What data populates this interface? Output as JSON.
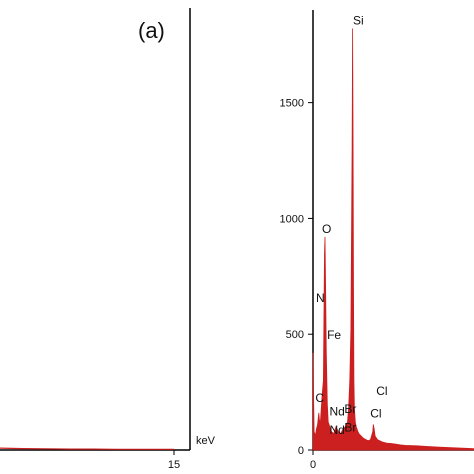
{
  "chart_data": [
    {
      "type": "line",
      "panel_label": "(a)",
      "x_unit": "keV",
      "x_ticks": [
        {
          "value": 15,
          "label": "15"
        }
      ],
      "xlim": [
        0,
        15
      ],
      "ylim": [
        0,
        1900
      ],
      "spectrum_color": "#cc1f1f",
      "series": [
        {
          "x": [
            0,
            2,
            4,
            6,
            8,
            10,
            12,
            14,
            15
          ],
          "y": [
            8,
            6,
            5,
            4,
            4,
            3,
            3,
            3,
            3
          ]
        }
      ]
    },
    {
      "type": "line",
      "panel_label": "",
      "x_unit": "",
      "x_ticks": [
        {
          "value": 0,
          "label": "0"
        }
      ],
      "y_ticks": [
        {
          "value": 0,
          "label": "0"
        },
        {
          "value": 500,
          "label": "500"
        },
        {
          "value": 1000,
          "label": "1000"
        },
        {
          "value": 1500,
          "label": "1500"
        }
      ],
      "xlim": [
        0,
        7
      ],
      "ylim": [
        0,
        1900
      ],
      "spectrum_color": "#cc1f1f",
      "series": [
        {
          "x": [
            0,
            0.05,
            0.1,
            0.15,
            0.2,
            0.25,
            0.28,
            0.32,
            0.36,
            0.4,
            0.45,
            0.5,
            0.52,
            0.55,
            0.58,
            0.62,
            0.66,
            0.7,
            0.75,
            0.8,
            0.9,
            1.0,
            1.05,
            1.1,
            1.2,
            1.3,
            1.4,
            1.5,
            1.55,
            1.6,
            1.65,
            1.7,
            1.72,
            1.74,
            1.76,
            1.78,
            1.8,
            1.84,
            1.88,
            1.95,
            2.0,
            2.1,
            2.2,
            2.3,
            2.4,
            2.5,
            2.6,
            2.62,
            2.66,
            2.7,
            2.8,
            2.9,
            3.0,
            3.2,
            3.4,
            3.6,
            3.8,
            4.0,
            4.5,
            5.0,
            5.5,
            6.0,
            6.5,
            7.0
          ],
          "y": [
            420,
            80,
            60,
            90,
            110,
            160,
            130,
            120,
            180,
            240,
            300,
            850,
            920,
            700,
            420,
            200,
            120,
            110,
            90,
            80,
            70,
            100,
            90,
            80,
            70,
            90,
            100,
            120,
            180,
            300,
            520,
            1300,
            1820,
            1400,
            700,
            300,
            180,
            120,
            100,
            80,
            70,
            60,
            50,
            45,
            40,
            45,
            80,
            110,
            90,
            60,
            45,
            40,
            35,
            30,
            28,
            25,
            22,
            20,
            18,
            15,
            12,
            10,
            8,
            6
          ]
        }
      ],
      "peak_labels": [
        {
          "text": "Si",
          "x": 1.74,
          "y": 1820
        },
        {
          "text": "O",
          "x": 0.52,
          "y": 920
        },
        {
          "text": "N",
          "x": 0.39,
          "y": 640
        },
        {
          "text": "Fe",
          "x": 0.7,
          "y": 480
        },
        {
          "text": "C",
          "x": 0.28,
          "y": 190
        },
        {
          "text": "Nd",
          "x": 0.98,
          "y": 150
        },
        {
          "text": "Br",
          "x": 1.45,
          "y": 160
        },
        {
          "text": "Nd",
          "x": 0.98,
          "y": 70
        },
        {
          "text": "Br",
          "x": 1.45,
          "y": 80
        },
        {
          "text": "Cl",
          "x": 2.66,
          "y": 220
        },
        {
          "text": "Cl",
          "x": 2.66,
          "y": 140
        }
      ]
    }
  ]
}
